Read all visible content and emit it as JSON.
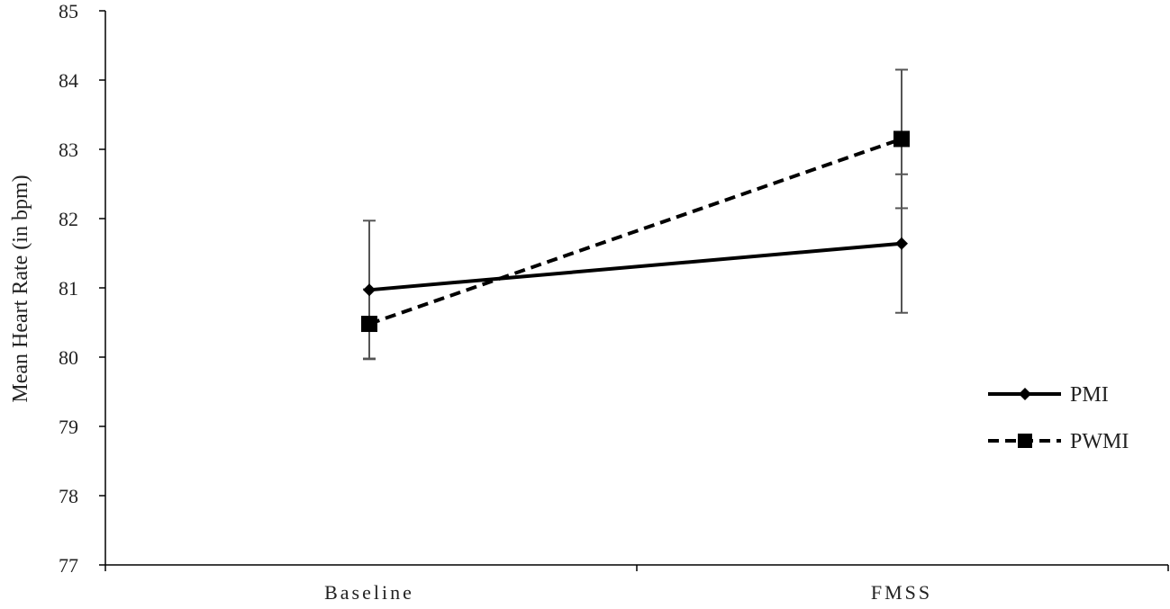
{
  "chart_data": {
    "type": "line",
    "title": "",
    "xlabel": "",
    "ylabel": "Mean Heart Rate (in bpm)",
    "categories": [
      "Baseline",
      "FMSS"
    ],
    "ylim": [
      77,
      85
    ],
    "yticks": [
      77,
      78,
      79,
      80,
      81,
      82,
      83,
      84,
      85
    ],
    "grid": false,
    "legend_position": "right",
    "series": [
      {
        "name": "PMI",
        "values": [
          80.97,
          81.64
        ],
        "error": [
          1.0,
          1.0
        ],
        "line_style": "solid",
        "marker": "diamond",
        "color": "#000000"
      },
      {
        "name": "PWMI",
        "values": [
          80.48,
          83.15
        ],
        "error": [
          0.5,
          1.0
        ],
        "line_style": "dashed",
        "marker": "square",
        "color": "#000000"
      }
    ]
  }
}
